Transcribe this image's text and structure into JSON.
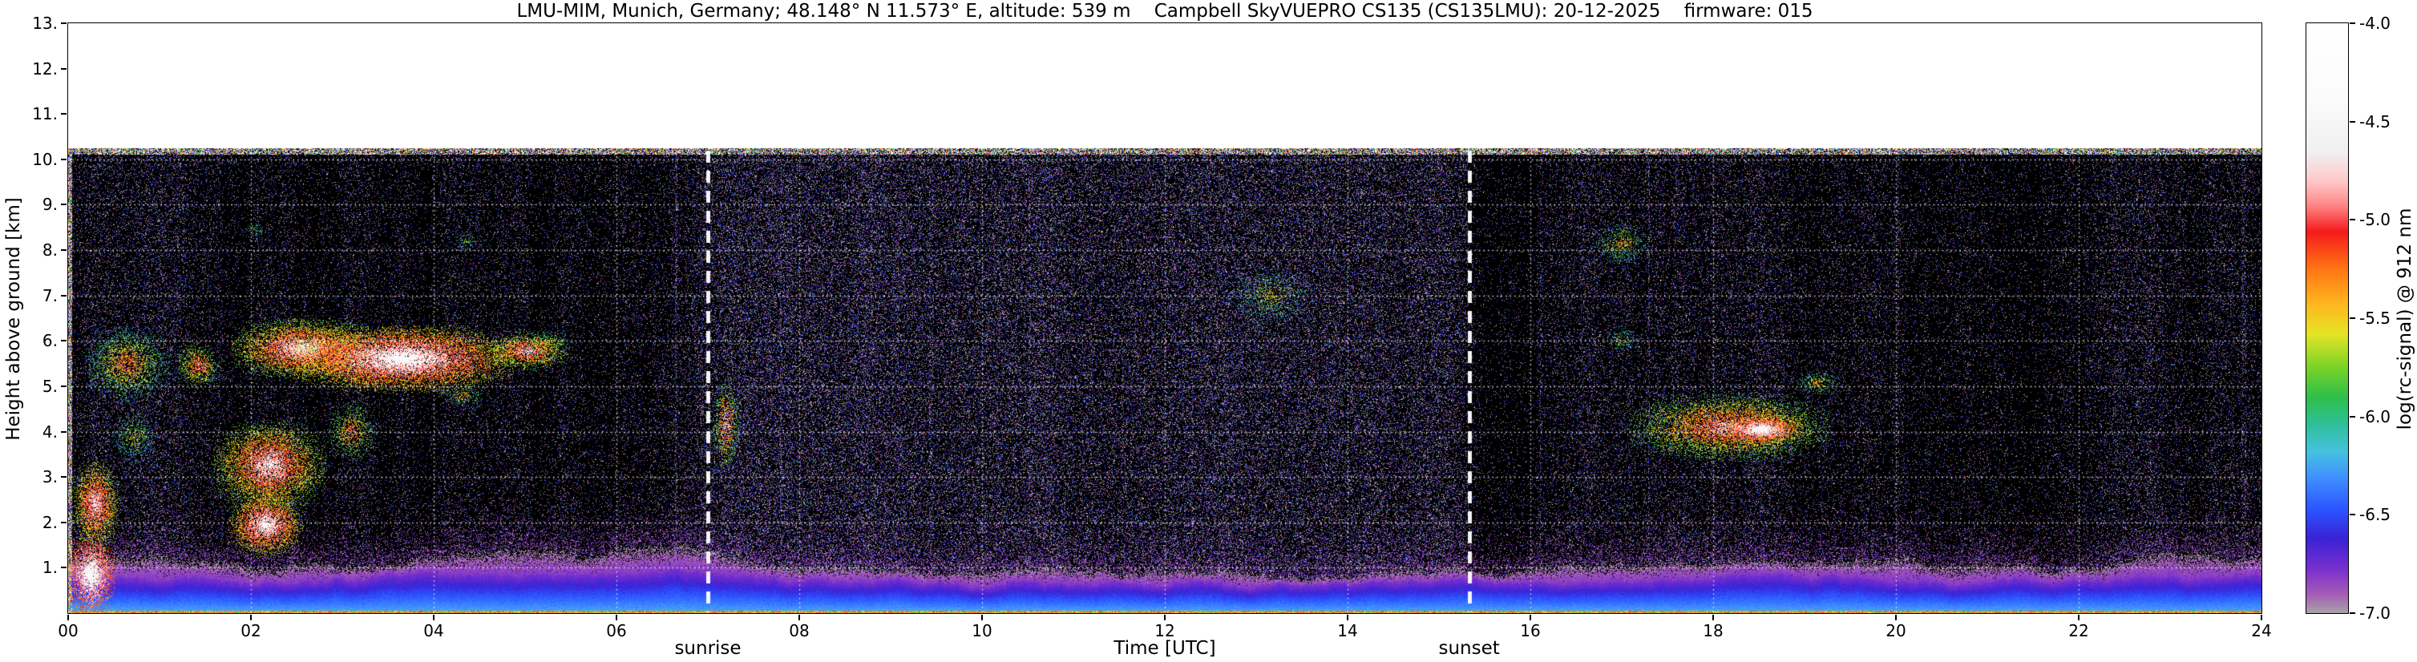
{
  "chart_data": {
    "type": "heatmap",
    "title": "LMU-MIM, Munich, Germany; 48.148° N 11.573° E, altitude: 539 m    Campbell SkyVUEPRO CS135 (CS135LMU): 20-12-2025    firmware: 015",
    "xlabel": "Time [UTC]",
    "ylabel": "Height above ground [km]",
    "colorbar_label": "log(rc-signal) @ 912 nm",
    "xlim": [
      0,
      24
    ],
    "ylim": [
      0,
      13
    ],
    "value_range": [
      -7.0,
      -4.0
    ],
    "data_top_km": 10.24,
    "x_ticks": [
      {
        "v": 0,
        "label": "00"
      },
      {
        "v": 2,
        "label": "02"
      },
      {
        "v": 4,
        "label": "04"
      },
      {
        "v": 6,
        "label": "06"
      },
      {
        "v": 8,
        "label": "08"
      },
      {
        "v": 10,
        "label": "10"
      },
      {
        "v": 12,
        "label": "12"
      },
      {
        "v": 14,
        "label": "14"
      },
      {
        "v": 16,
        "label": "16"
      },
      {
        "v": 18,
        "label": "18"
      },
      {
        "v": 20,
        "label": "20"
      },
      {
        "v": 22,
        "label": "22"
      },
      {
        "v": 24,
        "label": "24"
      }
    ],
    "y_ticks": [
      {
        "v": 1,
        "label": "1."
      },
      {
        "v": 2,
        "label": "2."
      },
      {
        "v": 3,
        "label": "3."
      },
      {
        "v": 4,
        "label": "4."
      },
      {
        "v": 5,
        "label": "5."
      },
      {
        "v": 6,
        "label": "6."
      },
      {
        "v": 7,
        "label": "7."
      },
      {
        "v": 8,
        "label": "8."
      },
      {
        "v": 9,
        "label": "9."
      },
      {
        "v": 10,
        "label": "10."
      },
      {
        "v": 11,
        "label": "11."
      },
      {
        "v": 12,
        "label": "12."
      },
      {
        "v": 13,
        "label": "13."
      }
    ],
    "colorbar_ticks": [
      {
        "v": -4.0,
        "label": "-4.0"
      },
      {
        "v": -4.5,
        "label": "-4.5"
      },
      {
        "v": -5.0,
        "label": "-5.0"
      },
      {
        "v": -5.5,
        "label": "-5.5"
      },
      {
        "v": -6.0,
        "label": "-6.0"
      },
      {
        "v": -6.5,
        "label": "-6.5"
      },
      {
        "v": -7.0,
        "label": "-7.0"
      }
    ],
    "grid": {
      "horizontal_km": [
        1,
        2,
        3,
        4,
        5,
        6,
        7,
        8,
        9,
        10
      ],
      "vertical_hours": [
        2,
        4,
        6,
        8,
        10,
        12,
        14,
        16,
        18,
        20,
        22
      ],
      "style": "dotted-white"
    },
    "annotations": [
      {
        "label": "sunrise",
        "time_utc": 7.0
      },
      {
        "label": "sunset",
        "time_utc": 15.33
      }
    ],
    "colormap": [
      [
        -7.0,
        "#a8a2a8"
      ],
      [
        -6.9,
        "#a55ab8"
      ],
      [
        -6.78,
        "#7a30cc"
      ],
      [
        -6.62,
        "#3a22d6"
      ],
      [
        -6.48,
        "#2b52ff"
      ],
      [
        -6.32,
        "#3f8cff"
      ],
      [
        -6.18,
        "#46c2e0"
      ],
      [
        -6.04,
        "#2fbf9a"
      ],
      [
        -5.9,
        "#2ebf4a"
      ],
      [
        -5.74,
        "#7fd426"
      ],
      [
        -5.58,
        "#e6e426"
      ],
      [
        -5.42,
        "#ffb41e"
      ],
      [
        -5.24,
        "#ff7014"
      ],
      [
        -5.06,
        "#f51b1b"
      ],
      [
        -4.92,
        "#ff8a8a"
      ],
      [
        -4.8,
        "#ffc9c9"
      ],
      [
        -4.66,
        "#efeff0"
      ],
      [
        -4.4,
        "#fbfbfb"
      ],
      [
        -4.0,
        "#ffffff"
      ]
    ],
    "boundary_layer": {
      "hours": [
        0,
        1,
        2,
        3,
        4,
        5,
        6,
        7,
        8,
        9,
        10,
        11,
        12,
        13,
        14,
        15,
        16,
        17,
        18,
        19,
        20,
        21,
        22,
        23,
        24
      ],
      "blue_top_km": [
        0.75,
        0.72,
        0.7,
        0.72,
        0.76,
        0.82,
        0.88,
        0.85,
        0.72,
        0.65,
        0.62,
        0.6,
        0.6,
        0.6,
        0.6,
        0.62,
        0.66,
        0.7,
        0.72,
        0.72,
        0.7,
        0.7,
        0.72,
        0.74,
        0.74
      ],
      "cap_top_km": [
        1.15,
        1.1,
        1.12,
        1.18,
        1.3,
        1.5,
        1.55,
        1.42,
        1.12,
        1.0,
        0.95,
        0.92,
        0.9,
        0.9,
        0.92,
        0.98,
        1.08,
        1.15,
        1.2,
        1.2,
        1.15,
        1.12,
        1.15,
        1.22,
        1.22
      ]
    },
    "clouds": [
      {
        "t0": 0.0,
        "t1": 0.5,
        "z0": 0.0,
        "z1": 1.7,
        "core": -4.2,
        "edge": -5.3,
        "fill": 0.95
      },
      {
        "t0": 0.05,
        "t1": 0.55,
        "z0": 1.5,
        "z1": 3.3,
        "core": -4.5,
        "edge": -5.8,
        "fill": 0.75
      },
      {
        "t0": 0.2,
        "t1": 1.1,
        "z0": 4.7,
        "z1": 6.3,
        "core": -5.0,
        "edge": -6.2,
        "fill": 0.45
      },
      {
        "t0": 0.5,
        "t1": 0.95,
        "z0": 3.3,
        "z1": 4.4,
        "core": -5.4,
        "edge": -6.3,
        "fill": 0.3
      },
      {
        "t0": 1.2,
        "t1": 1.65,
        "z0": 5.0,
        "z1": 5.9,
        "core": -4.8,
        "edge": -6.0,
        "fill": 0.55
      },
      {
        "t0": 1.8,
        "t1": 3.35,
        "z0": 5.2,
        "z1": 6.45,
        "core": -4.3,
        "edge": -5.9,
        "fill": 0.8
      },
      {
        "t0": 2.45,
        "t1": 4.85,
        "z0": 4.9,
        "z1": 6.3,
        "core": -4.1,
        "edge": -5.7,
        "fill": 0.92
      },
      {
        "t0": 4.6,
        "t1": 5.45,
        "z0": 5.4,
        "z1": 6.15,
        "core": -4.5,
        "edge": -5.9,
        "fill": 0.7
      },
      {
        "t0": 5.0,
        "t1": 5.5,
        "z0": 5.6,
        "z1": 6.25,
        "core": -5.3,
        "edge": -6.2,
        "fill": 0.3
      },
      {
        "t0": 1.6,
        "t1": 2.8,
        "z0": 2.3,
        "z1": 4.2,
        "core": -4.4,
        "edge": -5.9,
        "fill": 0.72
      },
      {
        "t0": 1.78,
        "t1": 2.55,
        "z0": 1.3,
        "z1": 2.6,
        "core": -4.3,
        "edge": -5.7,
        "fill": 0.85
      },
      {
        "t0": 2.85,
        "t1": 3.35,
        "z0": 3.4,
        "z1": 4.6,
        "core": -5.0,
        "edge": -6.1,
        "fill": 0.4
      },
      {
        "t0": 4.1,
        "t1": 4.55,
        "z0": 4.55,
        "z1": 5.05,
        "core": -5.3,
        "edge": -6.2,
        "fill": 0.3
      },
      {
        "t0": 7.05,
        "t1": 7.35,
        "z0": 3.2,
        "z1": 5.1,
        "core": -4.6,
        "edge": -6.1,
        "fill": 0.45
      },
      {
        "t0": 12.7,
        "t1": 13.6,
        "z0": 6.4,
        "z1": 7.6,
        "core": -5.4,
        "edge": -6.3,
        "fill": 0.22
      },
      {
        "t0": 16.7,
        "t1": 17.3,
        "z0": 7.7,
        "z1": 8.6,
        "core": -5.2,
        "edge": -6.3,
        "fill": 0.3
      },
      {
        "t0": 16.85,
        "t1": 17.15,
        "z0": 5.8,
        "z1": 6.25,
        "core": -5.4,
        "edge": -6.3,
        "fill": 0.28
      },
      {
        "t0": 17.1,
        "t1": 19.25,
        "z0": 3.4,
        "z1": 4.8,
        "core": -4.6,
        "edge": -6.0,
        "fill": 0.6
      },
      {
        "t0": 18.1,
        "t1": 18.95,
        "z0": 3.75,
        "z1": 4.35,
        "core": -4.1,
        "edge": -5.5,
        "fill": 0.95
      },
      {
        "t0": 18.95,
        "t1": 19.35,
        "z0": 4.8,
        "z1": 5.35,
        "core": -5.2,
        "edge": -6.2,
        "fill": 0.35
      },
      {
        "t0": 1.95,
        "t1": 2.15,
        "z0": 8.3,
        "z1": 8.6,
        "core": -5.5,
        "edge": -6.3,
        "fill": 0.25
      },
      {
        "t0": 4.25,
        "t1": 4.45,
        "z0": 8.0,
        "z1": 8.4,
        "core": -5.5,
        "edge": -6.3,
        "fill": 0.25
      }
    ],
    "noise": {
      "night_density": 0.11,
      "day_density": 0.24,
      "bright_fraction": 0.03,
      "seed": 20251220
    }
  }
}
